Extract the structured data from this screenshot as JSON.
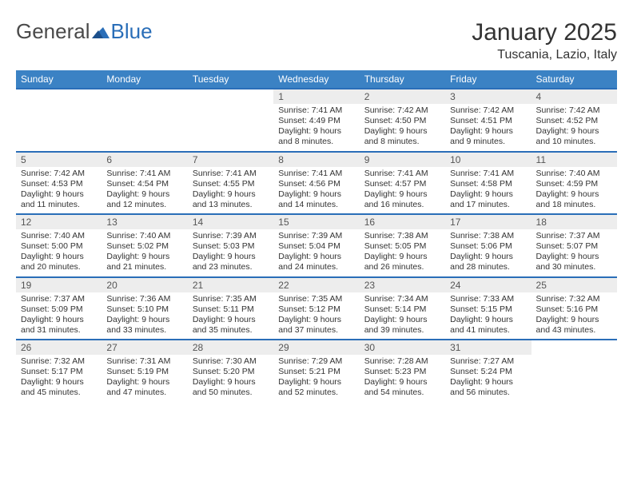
{
  "brand": {
    "name_left": "General",
    "name_right": "Blue"
  },
  "header": {
    "title": "January 2025",
    "location": "Tuscania, Lazio, Italy"
  },
  "colors": {
    "header_bg": "#3b82c4",
    "header_text": "#ffffff",
    "row_border": "#2a6eb8",
    "daynum_bg": "#ededed",
    "page_bg": "#ffffff",
    "text": "#333333"
  },
  "daynames": [
    "Sunday",
    "Monday",
    "Tuesday",
    "Wednesday",
    "Thursday",
    "Friday",
    "Saturday"
  ],
  "weeks": [
    [
      {
        "empty": true
      },
      {
        "empty": true
      },
      {
        "empty": true
      },
      {
        "day": "1",
        "sunrise": "Sunrise: 7:41 AM",
        "sunset": "Sunset: 4:49 PM",
        "daylight": "Daylight: 9 hours and 8 minutes."
      },
      {
        "day": "2",
        "sunrise": "Sunrise: 7:42 AM",
        "sunset": "Sunset: 4:50 PM",
        "daylight": "Daylight: 9 hours and 8 minutes."
      },
      {
        "day": "3",
        "sunrise": "Sunrise: 7:42 AM",
        "sunset": "Sunset: 4:51 PM",
        "daylight": "Daylight: 9 hours and 9 minutes."
      },
      {
        "day": "4",
        "sunrise": "Sunrise: 7:42 AM",
        "sunset": "Sunset: 4:52 PM",
        "daylight": "Daylight: 9 hours and 10 minutes."
      }
    ],
    [
      {
        "day": "5",
        "sunrise": "Sunrise: 7:42 AM",
        "sunset": "Sunset: 4:53 PM",
        "daylight": "Daylight: 9 hours and 11 minutes."
      },
      {
        "day": "6",
        "sunrise": "Sunrise: 7:41 AM",
        "sunset": "Sunset: 4:54 PM",
        "daylight": "Daylight: 9 hours and 12 minutes."
      },
      {
        "day": "7",
        "sunrise": "Sunrise: 7:41 AM",
        "sunset": "Sunset: 4:55 PM",
        "daylight": "Daylight: 9 hours and 13 minutes."
      },
      {
        "day": "8",
        "sunrise": "Sunrise: 7:41 AM",
        "sunset": "Sunset: 4:56 PM",
        "daylight": "Daylight: 9 hours and 14 minutes."
      },
      {
        "day": "9",
        "sunrise": "Sunrise: 7:41 AM",
        "sunset": "Sunset: 4:57 PM",
        "daylight": "Daylight: 9 hours and 16 minutes."
      },
      {
        "day": "10",
        "sunrise": "Sunrise: 7:41 AM",
        "sunset": "Sunset: 4:58 PM",
        "daylight": "Daylight: 9 hours and 17 minutes."
      },
      {
        "day": "11",
        "sunrise": "Sunrise: 7:40 AM",
        "sunset": "Sunset: 4:59 PM",
        "daylight": "Daylight: 9 hours and 18 minutes."
      }
    ],
    [
      {
        "day": "12",
        "sunrise": "Sunrise: 7:40 AM",
        "sunset": "Sunset: 5:00 PM",
        "daylight": "Daylight: 9 hours and 20 minutes."
      },
      {
        "day": "13",
        "sunrise": "Sunrise: 7:40 AM",
        "sunset": "Sunset: 5:02 PM",
        "daylight": "Daylight: 9 hours and 21 minutes."
      },
      {
        "day": "14",
        "sunrise": "Sunrise: 7:39 AM",
        "sunset": "Sunset: 5:03 PM",
        "daylight": "Daylight: 9 hours and 23 minutes."
      },
      {
        "day": "15",
        "sunrise": "Sunrise: 7:39 AM",
        "sunset": "Sunset: 5:04 PM",
        "daylight": "Daylight: 9 hours and 24 minutes."
      },
      {
        "day": "16",
        "sunrise": "Sunrise: 7:38 AM",
        "sunset": "Sunset: 5:05 PM",
        "daylight": "Daylight: 9 hours and 26 minutes."
      },
      {
        "day": "17",
        "sunrise": "Sunrise: 7:38 AM",
        "sunset": "Sunset: 5:06 PM",
        "daylight": "Daylight: 9 hours and 28 minutes."
      },
      {
        "day": "18",
        "sunrise": "Sunrise: 7:37 AM",
        "sunset": "Sunset: 5:07 PM",
        "daylight": "Daylight: 9 hours and 30 minutes."
      }
    ],
    [
      {
        "day": "19",
        "sunrise": "Sunrise: 7:37 AM",
        "sunset": "Sunset: 5:09 PM",
        "daylight": "Daylight: 9 hours and 31 minutes."
      },
      {
        "day": "20",
        "sunrise": "Sunrise: 7:36 AM",
        "sunset": "Sunset: 5:10 PM",
        "daylight": "Daylight: 9 hours and 33 minutes."
      },
      {
        "day": "21",
        "sunrise": "Sunrise: 7:35 AM",
        "sunset": "Sunset: 5:11 PM",
        "daylight": "Daylight: 9 hours and 35 minutes."
      },
      {
        "day": "22",
        "sunrise": "Sunrise: 7:35 AM",
        "sunset": "Sunset: 5:12 PM",
        "daylight": "Daylight: 9 hours and 37 minutes."
      },
      {
        "day": "23",
        "sunrise": "Sunrise: 7:34 AM",
        "sunset": "Sunset: 5:14 PM",
        "daylight": "Daylight: 9 hours and 39 minutes."
      },
      {
        "day": "24",
        "sunrise": "Sunrise: 7:33 AM",
        "sunset": "Sunset: 5:15 PM",
        "daylight": "Daylight: 9 hours and 41 minutes."
      },
      {
        "day": "25",
        "sunrise": "Sunrise: 7:32 AM",
        "sunset": "Sunset: 5:16 PM",
        "daylight": "Daylight: 9 hours and 43 minutes."
      }
    ],
    [
      {
        "day": "26",
        "sunrise": "Sunrise: 7:32 AM",
        "sunset": "Sunset: 5:17 PM",
        "daylight": "Daylight: 9 hours and 45 minutes."
      },
      {
        "day": "27",
        "sunrise": "Sunrise: 7:31 AM",
        "sunset": "Sunset: 5:19 PM",
        "daylight": "Daylight: 9 hours and 47 minutes."
      },
      {
        "day": "28",
        "sunrise": "Sunrise: 7:30 AM",
        "sunset": "Sunset: 5:20 PM",
        "daylight": "Daylight: 9 hours and 50 minutes."
      },
      {
        "day": "29",
        "sunrise": "Sunrise: 7:29 AM",
        "sunset": "Sunset: 5:21 PM",
        "daylight": "Daylight: 9 hours and 52 minutes."
      },
      {
        "day": "30",
        "sunrise": "Sunrise: 7:28 AM",
        "sunset": "Sunset: 5:23 PM",
        "daylight": "Daylight: 9 hours and 54 minutes."
      },
      {
        "day": "31",
        "sunrise": "Sunrise: 7:27 AM",
        "sunset": "Sunset: 5:24 PM",
        "daylight": "Daylight: 9 hours and 56 minutes."
      },
      {
        "empty": true
      }
    ]
  ]
}
